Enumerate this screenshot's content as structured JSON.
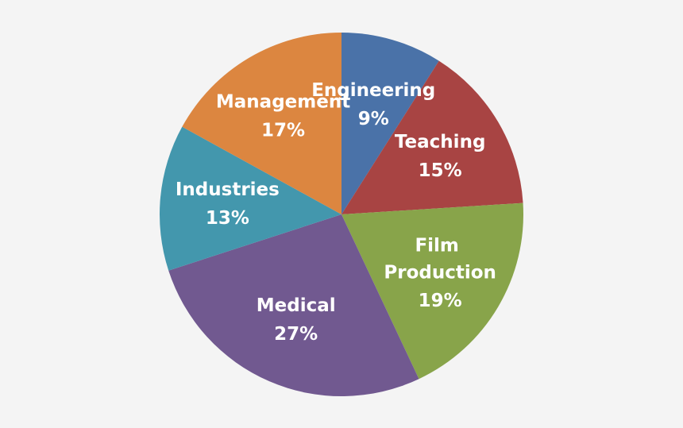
{
  "chart_data": {
    "type": "pie",
    "categories": [
      "Engineering",
      "Teaching",
      "Film Production",
      "Medical",
      "Industries",
      "Management"
    ],
    "values": [
      9,
      15,
      19,
      27,
      13,
      17
    ],
    "value_labels": [
      "9%",
      "15%",
      "19%",
      "27%",
      "13%",
      "17%"
    ],
    "colors": [
      "#4a72a8",
      "#a84443",
      "#88a44a",
      "#715990",
      "#4397ad",
      "#dc8640"
    ]
  }
}
